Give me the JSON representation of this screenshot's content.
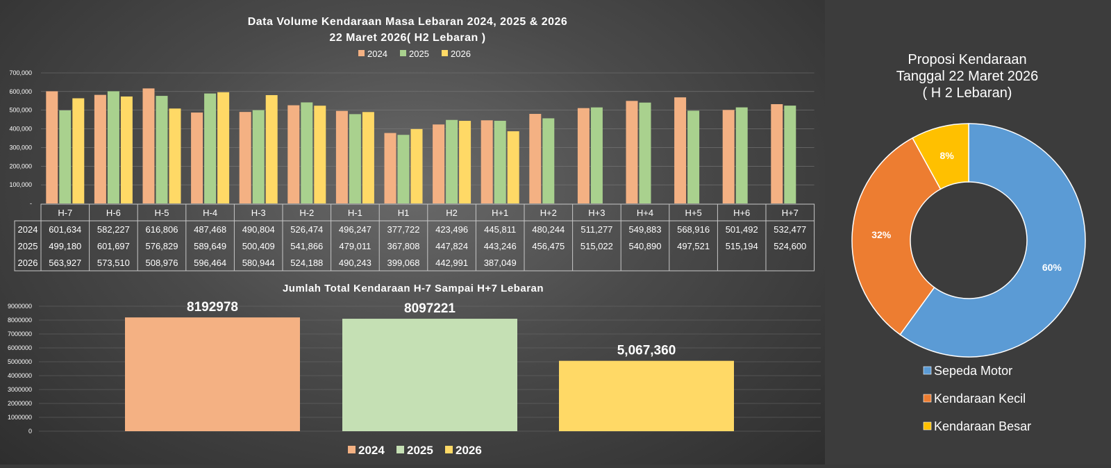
{
  "chart_data": [
    {
      "type": "bar",
      "title": "Data Volume Kendaraan Masa Lebaran 2024, 2025 & 2026",
      "subtitle": "22 Maret 2026( H2 Lebaran )",
      "categories": [
        "H-7",
        "H-6",
        "H-5",
        "H-4",
        "H-3",
        "H-2",
        "H-1",
        "H1",
        "H2",
        "H+1",
        "H+2",
        "H+3",
        "H+4",
        "H+5",
        "H+6",
        "H+7"
      ],
      "series": [
        {
          "name": "2024",
          "color": "#F4B183",
          "values": [
            601634,
            582227,
            616806,
            487468,
            490804,
            526474,
            496247,
            377722,
            423496,
            445811,
            480244,
            511277,
            549883,
            568916,
            501492,
            532477
          ]
        },
        {
          "name": "2025",
          "color": "#A9D18E",
          "values": [
            499180,
            601697,
            576829,
            589649,
            500409,
            541866,
            479011,
            367808,
            447824,
            443246,
            456475,
            515022,
            540890,
            497521,
            515194,
            524600
          ]
        },
        {
          "name": "2026",
          "color": "#FFD966",
          "values": [
            563927,
            573510,
            508976,
            596464,
            580944,
            524188,
            490243,
            399068,
            442991,
            387049,
            null,
            null,
            null,
            null,
            null,
            null
          ]
        }
      ],
      "y_ticks": [
        "-",
        "100,000",
        "200,000",
        "300,000",
        "400,000",
        "500,000",
        "600,000",
        "700,000"
      ],
      "ylim": [
        0,
        700000
      ],
      "legend_position": "top",
      "table": {
        "rows": [
          {
            "label": "2024",
            "cells": [
              "601,634",
              "582,227",
              "616,806",
              "487,468",
              "490,804",
              "526,474",
              "496,247",
              "377,722",
              "423,496",
              "445,811",
              "480,244",
              "511,277",
              "549,883",
              "568,916",
              "501,492",
              "532,477"
            ]
          },
          {
            "label": "2025",
            "cells": [
              "499,180",
              "601,697",
              "576,829",
              "589,649",
              "500,409",
              "541,866",
              "479,011",
              "367,808",
              "447,824",
              "443,246",
              "456,475",
              "515,022",
              "540,890",
              "497,521",
              "515,194",
              "524,600"
            ]
          },
          {
            "label": "2026",
            "cells": [
              "563,927",
              "573,510",
              "508,976",
              "596,464",
              "580,944",
              "524,188",
              "490,243",
              "399,068",
              "442,991",
              "387,049",
              "",
              "",
              "",
              "",
              "",
              ""
            ]
          }
        ]
      }
    },
    {
      "type": "bar",
      "title": "Jumlah Total Kendaraan H-7 Sampai H+7 Lebaran",
      "categories": [
        "2024",
        "2025",
        "2026"
      ],
      "values": [
        8192978,
        8097221,
        5067360
      ],
      "data_labels": [
        "8192978",
        "8097221",
        "5,067,360"
      ],
      "colors": [
        "#F4B183",
        "#C5E0B4",
        "#FFD966"
      ],
      "y_ticks": [
        "0",
        "1000000",
        "2000000",
        "3000000",
        "4000000",
        "5000000",
        "6000000",
        "7000000",
        "8000000",
        "9000000"
      ],
      "ylim": [
        0,
        9000000
      ],
      "legend": [
        "2024",
        "2025",
        "2026"
      ],
      "legend_position": "bottom"
    },
    {
      "type": "pie",
      "title_lines": [
        "Proposi Kendaraan",
        "Tanggal 22 Maret 2026",
        "( H 2 Lebaran)"
      ],
      "donut": true,
      "slices": [
        {
          "name": "Sepeda Motor",
          "value": 60,
          "label": "60%",
          "color": "#5B9BD5"
        },
        {
          "name": "Kendaraan Kecil",
          "value": 32,
          "label": "32%",
          "color": "#ED7D31"
        },
        {
          "name": "Kendaraan Besar",
          "value": 8,
          "label": "8%",
          "color": "#FFC000"
        }
      ],
      "legend_position": "bottom"
    }
  ]
}
